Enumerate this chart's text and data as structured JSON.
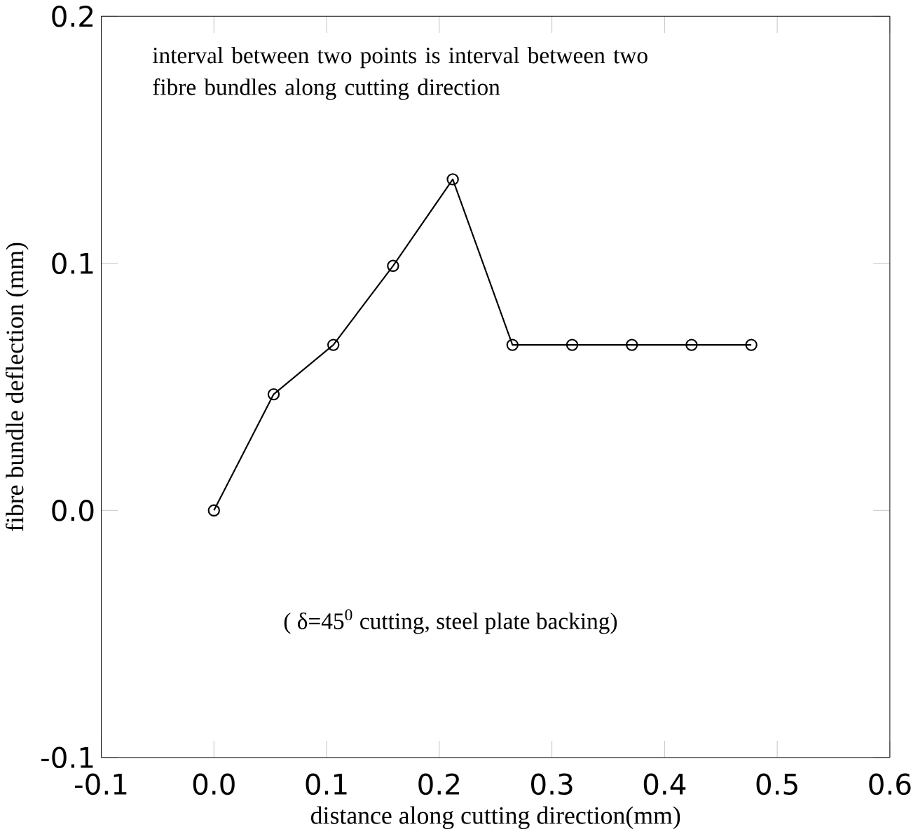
{
  "chart_data": {
    "type": "line",
    "xlabel": "distance along cutting direction(mm)",
    "ylabel": "fibre bundle deflection (mm)",
    "x": [
      0.0,
      0.053,
      0.106,
      0.159,
      0.212,
      0.265,
      0.318,
      0.371,
      0.424,
      0.477
    ],
    "values": [
      0.0,
      0.047,
      0.067,
      0.099,
      0.134,
      0.067,
      0.067,
      0.067,
      0.067,
      0.067
    ],
    "color": "#000000",
    "marker": "circle",
    "line_style": "solid",
    "grid": false,
    "xlim": [
      -0.1,
      0.6
    ],
    "ylim": [
      -0.1,
      0.2
    ],
    "xticks": [
      -0.1,
      {
        "value": 0.0,
        "label": "0.0"
      },
      0.1,
      0.2,
      0.3,
      0.4,
      0.5,
      0.6
    ],
    "yticks": [
      -0.1,
      {
        "value": 0.0,
        "label": "0.0"
      },
      0.1,
      0.2
    ],
    "annotations": [
      "interval between two points is interval between two fibre bundles along cutting direction",
      "( δ=45$^{0}$ cutting, steel plate backing)"
    ]
  }
}
